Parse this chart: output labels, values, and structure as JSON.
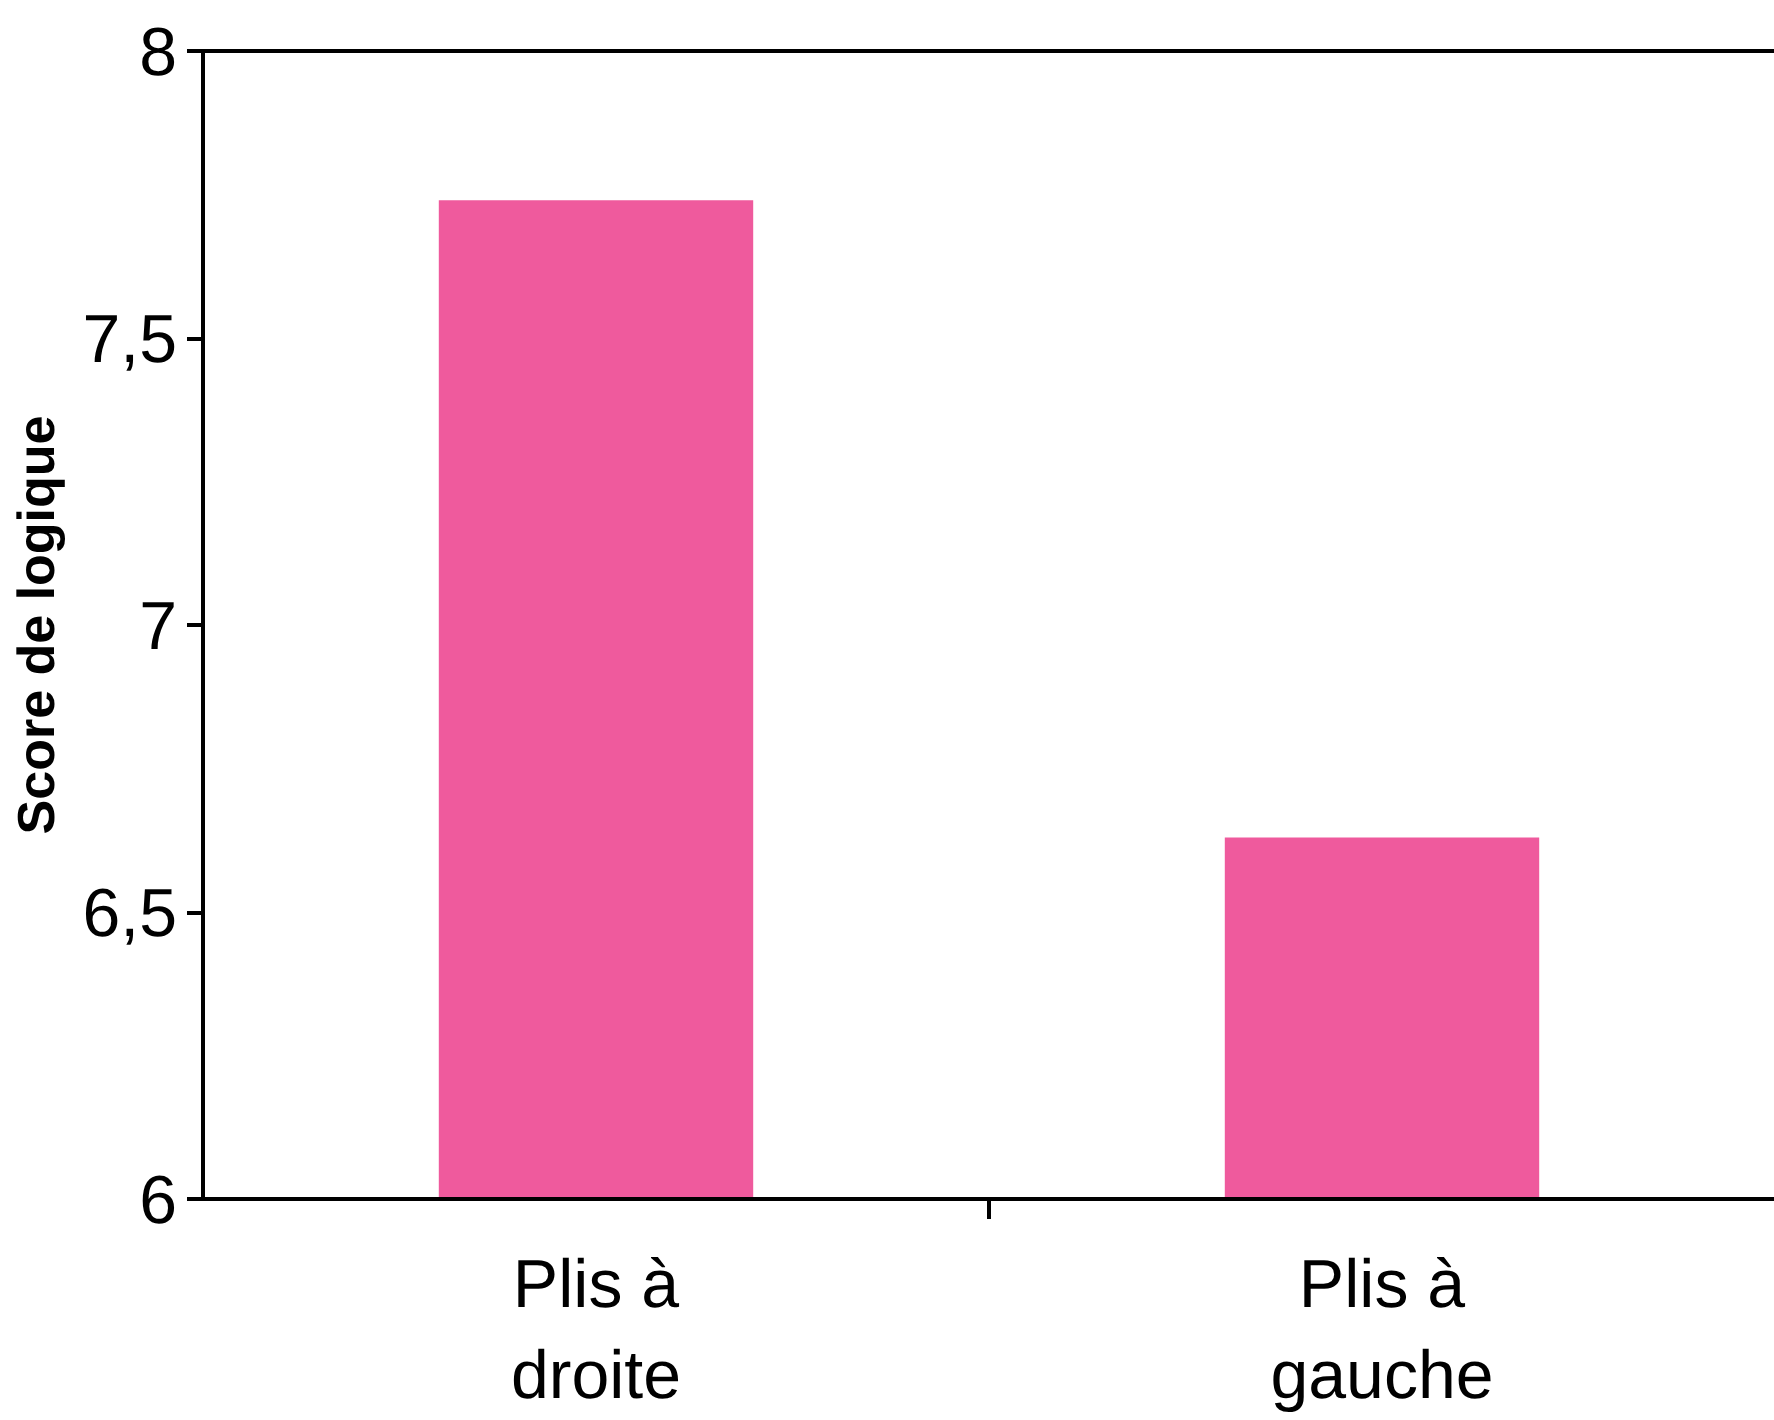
{
  "chart_data": {
    "type": "bar",
    "ylabel": "Score de logique",
    "categories": [
      "Plis à\ndroite",
      "Plis à\ngauche"
    ],
    "values": [
      7.74,
      6.63
    ],
    "color": "#ef5a9d",
    "ylim": [
      6,
      8
    ],
    "yticks": [
      6,
      {
        "value": 6.5,
        "label": "6,5"
      },
      7,
      {
        "value": 7.5,
        "label": "7,5"
      },
      8
    ],
    "grid": false
  }
}
